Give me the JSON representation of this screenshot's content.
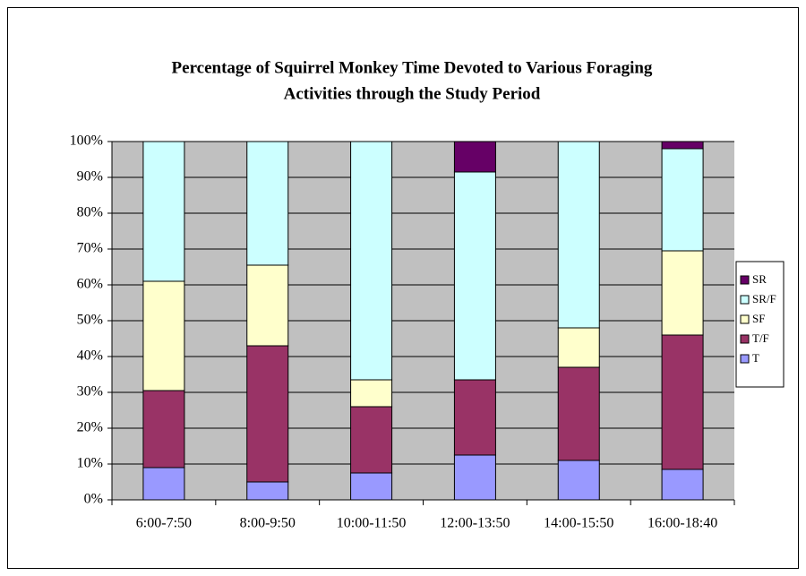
{
  "chart_data": {
    "type": "stacked_bar",
    "title": [
      "Percentage of Squirrel Monkey Time Devoted to Various Foraging",
      "Activities through the Study Period"
    ],
    "categories": [
      "6:00-7:50",
      "8:00-9:50",
      "10:00-11:50",
      "12:00-13:50",
      "14:00-15:50",
      "16:00-18:40"
    ],
    "series": [
      {
        "name": "T",
        "color": "#9999ff",
        "values": [
          9,
          5,
          7.5,
          12.5,
          11,
          8.5
        ]
      },
      {
        "name": "T/F",
        "color": "#993366",
        "values": [
          21.5,
          38,
          18.5,
          21,
          26,
          37.5
        ]
      },
      {
        "name": "SF",
        "color": "#ffffcc",
        "values": [
          30.5,
          22.5,
          7.5,
          0,
          11,
          23.5
        ]
      },
      {
        "name": "SR/F",
        "color": "#ccffff",
        "values": [
          39,
          34.5,
          66.5,
          58,
          52,
          28.5
        ]
      },
      {
        "name": "SR",
        "color": "#660066",
        "values": [
          0,
          0,
          0,
          8.5,
          0,
          2
        ]
      }
    ],
    "ylim": [
      0,
      100
    ],
    "yticks": [
      {
        "value": 0,
        "label": "0%"
      },
      {
        "value": 10,
        "label": "10%"
      },
      {
        "value": 20,
        "label": "20%"
      },
      {
        "value": 30,
        "label": "30%"
      },
      {
        "value": 40,
        "label": "40%"
      },
      {
        "value": 50,
        "label": "50%"
      },
      {
        "value": 60,
        "label": "60%"
      },
      {
        "value": 70,
        "label": "70%"
      },
      {
        "value": 80,
        "label": "80%"
      },
      {
        "value": 90,
        "label": "90%"
      },
      {
        "value": 100,
        "label": "100%"
      }
    ],
    "grid": true,
    "plot_background": "#c0c0c0",
    "legend": "right"
  }
}
